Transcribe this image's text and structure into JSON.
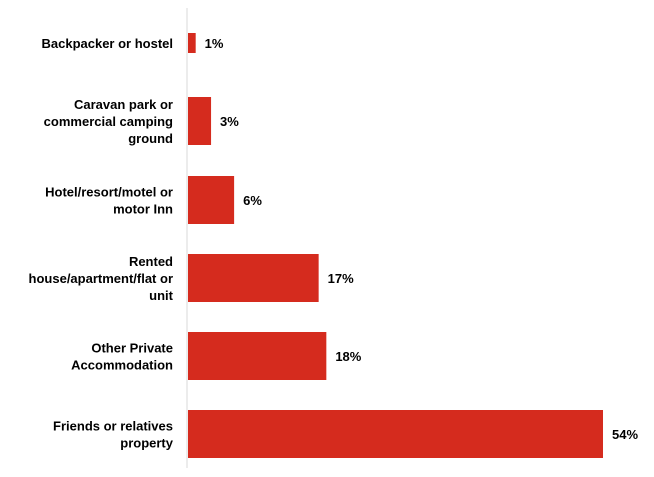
{
  "chart_data": {
    "type": "bar",
    "orientation": "horizontal",
    "categories": [
      "Backpacker or hostel",
      "Caravan park or commercial camping ground",
      "Hotel/resort/motel or motor Inn",
      "Rented house/apartment/flat or unit",
      "Other Private Accommodation",
      "Friends or relatives property"
    ],
    "category_lines": [
      [
        "Backpacker or hostel"
      ],
      [
        "Caravan park or",
        "commercial camping",
        "ground"
      ],
      [
        "Hotel/resort/motel or",
        "motor Inn"
      ],
      [
        "Rented",
        "house/apartment/flat or",
        "unit"
      ],
      [
        "Other Private",
        "Accommodation"
      ],
      [
        "Friends or relatives",
        "property"
      ]
    ],
    "values": [
      1,
      3,
      6,
      17,
      18,
      54
    ],
    "value_labels": [
      "1%",
      "3%",
      "6%",
      "17%",
      "18%",
      "54%"
    ],
    "unit": "%",
    "xlim": [
      0,
      54
    ],
    "grid": false,
    "legend": "none",
    "colors": {
      "bar": "#d52b1e",
      "axis": "#d9d9d9",
      "text": "#000000"
    }
  }
}
